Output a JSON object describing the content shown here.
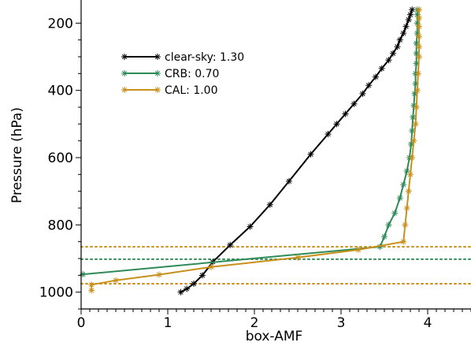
{
  "chart_data": {
    "type": "line",
    "xlabel": "box-AMF",
    "ylabel": "Pressure (hPa)",
    "xlim": [
      0,
      4.5
    ],
    "ylim": [
      1050,
      150
    ],
    "y_inverted": true,
    "x_ticks": [
      0,
      1,
      2,
      3,
      4
    ],
    "y_ticks": [
      200,
      400,
      600,
      800,
      1000
    ],
    "legend_position": "upper-left",
    "grid": false,
    "series": [
      {
        "name": "clear-sky: 1.30",
        "color": "#000000",
        "marker": "star",
        "points": [
          [
            1.15,
            1000
          ],
          [
            1.22,
            990
          ],
          [
            1.3,
            975
          ],
          [
            1.4,
            950
          ],
          [
            1.52,
            910
          ],
          [
            1.72,
            860
          ],
          [
            1.95,
            805
          ],
          [
            2.18,
            740
          ],
          [
            2.4,
            670
          ],
          [
            2.65,
            590
          ],
          [
            2.85,
            530
          ],
          [
            2.95,
            500
          ],
          [
            3.05,
            470
          ],
          [
            3.15,
            440
          ],
          [
            3.25,
            410
          ],
          [
            3.32,
            385
          ],
          [
            3.4,
            360
          ],
          [
            3.47,
            335
          ],
          [
            3.55,
            310
          ],
          [
            3.6,
            290
          ],
          [
            3.65,
            270
          ],
          [
            3.68,
            250
          ],
          [
            3.72,
            230
          ],
          [
            3.75,
            210
          ],
          [
            3.78,
            190
          ],
          [
            3.8,
            175
          ],
          [
            3.82,
            160
          ]
        ]
      },
      {
        "name": "CRB: 0.70",
        "color": "#2e8b57",
        "marker": "star",
        "points": [
          [
            0.02,
            947
          ],
          [
            3.45,
            865
          ],
          [
            3.5,
            835
          ],
          [
            3.55,
            800
          ],
          [
            3.62,
            765
          ],
          [
            3.68,
            720
          ],
          [
            3.72,
            680
          ],
          [
            3.76,
            640
          ],
          [
            3.79,
            600
          ],
          [
            3.81,
            560
          ],
          [
            3.82,
            520
          ],
          [
            3.83,
            480
          ],
          [
            3.84,
            445
          ],
          [
            3.85,
            410
          ],
          [
            3.86,
            380
          ],
          [
            3.86,
            350
          ],
          [
            3.87,
            320
          ],
          [
            3.87,
            290
          ],
          [
            3.87,
            260
          ],
          [
            3.88,
            230
          ],
          [
            3.88,
            200
          ],
          [
            3.88,
            175
          ],
          [
            3.88,
            160
          ]
        ]
      },
      {
        "name": "CAL: 1.00",
        "color": "#c8901a",
        "marker": "star",
        "points": [
          [
            0.12,
            995
          ],
          [
            0.12,
            978
          ],
          [
            0.4,
            965
          ],
          [
            0.9,
            948
          ],
          [
            1.5,
            925
          ],
          [
            2.5,
            897
          ],
          [
            3.2,
            874
          ],
          [
            3.72,
            850
          ],
          [
            3.74,
            800
          ],
          [
            3.76,
            750
          ],
          [
            3.78,
            700
          ],
          [
            3.8,
            650
          ],
          [
            3.82,
            600
          ],
          [
            3.84,
            550
          ],
          [
            3.86,
            500
          ],
          [
            3.87,
            450
          ],
          [
            3.88,
            400
          ],
          [
            3.89,
            350
          ],
          [
            3.9,
            300
          ],
          [
            3.9,
            270
          ],
          [
            3.9,
            240
          ],
          [
            3.9,
            210
          ],
          [
            3.9,
            185
          ],
          [
            3.9,
            160
          ]
        ]
      }
    ],
    "hlines": [
      {
        "y": 865,
        "color": "#c8901a",
        "style": "dotted"
      },
      {
        "y": 902,
        "color": "#2e8b57",
        "style": "dotted"
      },
      {
        "y": 975,
        "color": "#c8901a",
        "style": "dotted"
      }
    ]
  }
}
